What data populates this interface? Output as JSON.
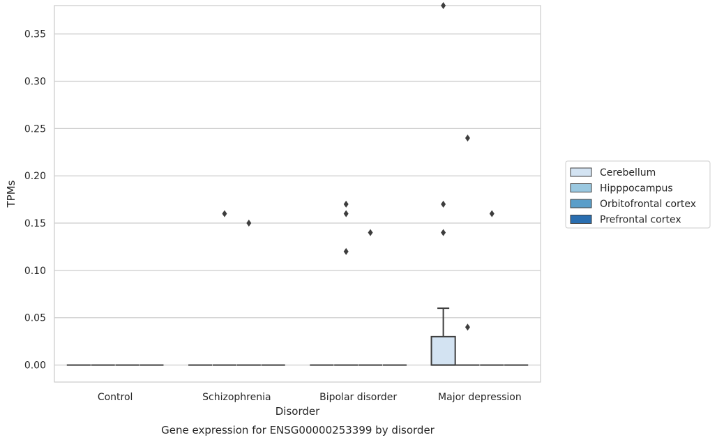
{
  "chart_data": {
    "type": "box",
    "xlabel": "Disorder",
    "ylabel": "TPMs",
    "caption": "Gene expression for ENSG00000253399 by disorder",
    "categories": [
      "Control",
      "Schizophrenia",
      "Bipolar disorder",
      "Major depression"
    ],
    "ylim": [
      -0.018,
      0.38
    ],
    "yticks": [
      0.0,
      0.05,
      0.1,
      0.15,
      0.2,
      0.25,
      0.3,
      0.35
    ],
    "ytick_labels": [
      "0.00",
      "0.05",
      "0.10",
      "0.15",
      "0.20",
      "0.25",
      "0.30",
      "0.35"
    ],
    "grid": true,
    "legend_position": "right",
    "series": [
      {
        "name": "Cerebellum",
        "color": "#d3e3f2",
        "boxes": [
          {
            "q1": 0,
            "median": 0,
            "q3": 0,
            "whisker_low": 0,
            "whisker_high": 0,
            "outliers": []
          },
          {
            "q1": 0,
            "median": 0,
            "q3": 0,
            "whisker_low": 0,
            "whisker_high": 0,
            "outliers": []
          },
          {
            "q1": 0,
            "median": 0,
            "q3": 0,
            "whisker_low": 0,
            "whisker_high": 0,
            "outliers": []
          },
          {
            "q1": 0,
            "median": 0,
            "q3": 0.03,
            "whisker_low": 0,
            "whisker_high": 0.06,
            "outliers": [
              0.38,
              0.17,
              0.14
            ]
          }
        ]
      },
      {
        "name": "Hipppocampus",
        "color": "#9ac8e0",
        "boxes": [
          {
            "q1": 0,
            "median": 0,
            "q3": 0,
            "whisker_low": 0,
            "whisker_high": 0,
            "outliers": []
          },
          {
            "q1": 0,
            "median": 0,
            "q3": 0,
            "whisker_low": 0,
            "whisker_high": 0,
            "outliers": [
              0.16
            ]
          },
          {
            "q1": 0,
            "median": 0,
            "q3": 0,
            "whisker_low": 0,
            "whisker_high": 0,
            "outliers": [
              0.17,
              0.16,
              0.12
            ]
          },
          {
            "q1": 0,
            "median": 0,
            "q3": 0,
            "whisker_low": 0,
            "whisker_high": 0,
            "outliers": [
              0.24,
              0.04
            ]
          }
        ]
      },
      {
        "name": "Orbitofrontal cortex",
        "color": "#5a9ec9",
        "boxes": [
          {
            "q1": 0,
            "median": 0,
            "q3": 0,
            "whisker_low": 0,
            "whisker_high": 0,
            "outliers": []
          },
          {
            "q1": 0,
            "median": 0,
            "q3": 0,
            "whisker_low": 0,
            "whisker_high": 0,
            "outliers": [
              0.15
            ]
          },
          {
            "q1": 0,
            "median": 0,
            "q3": 0,
            "whisker_low": 0,
            "whisker_high": 0,
            "outliers": [
              0.14
            ]
          },
          {
            "q1": 0,
            "median": 0,
            "q3": 0,
            "whisker_low": 0,
            "whisker_high": 0,
            "outliers": [
              0.16
            ]
          }
        ]
      },
      {
        "name": "Prefrontal cortex",
        "color": "#2a6eb0",
        "boxes": [
          {
            "q1": 0,
            "median": 0,
            "q3": 0,
            "whisker_low": 0,
            "whisker_high": 0,
            "outliers": []
          },
          {
            "q1": 0,
            "median": 0,
            "q3": 0,
            "whisker_low": 0,
            "whisker_high": 0,
            "outliers": []
          },
          {
            "q1": 0,
            "median": 0,
            "q3": 0,
            "whisker_low": 0,
            "whisker_high": 0,
            "outliers": []
          },
          {
            "q1": 0,
            "median": 0,
            "q3": 0,
            "whisker_low": 0,
            "whisker_high": 0,
            "outliers": []
          }
        ]
      }
    ]
  }
}
